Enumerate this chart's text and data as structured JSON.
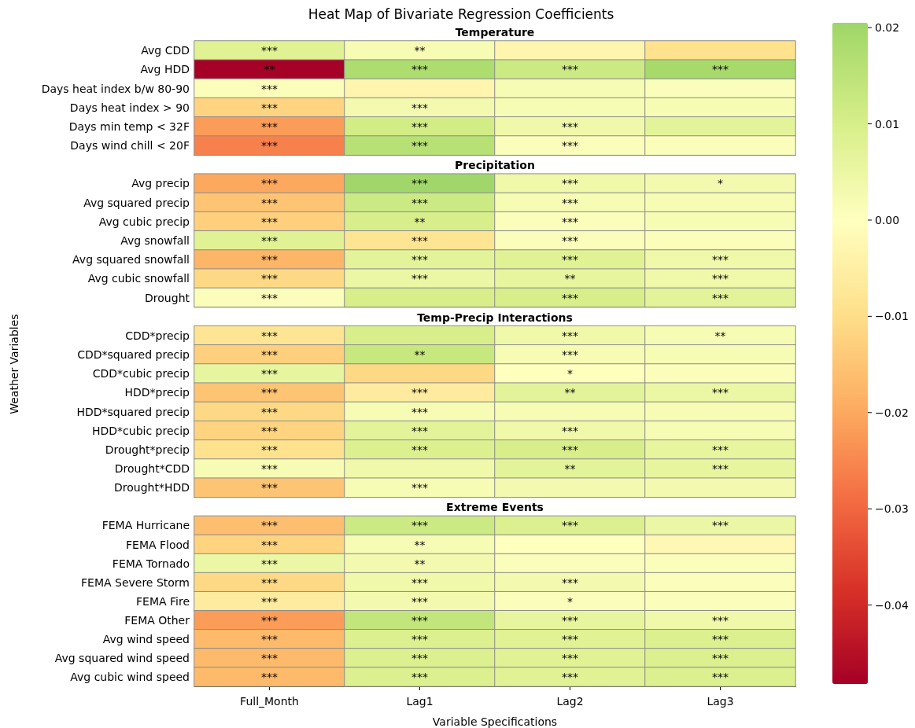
{
  "chart_data": {
    "type": "heatmap",
    "title": "Heat Map of Bivariate Regression Coefficients",
    "xlabel": "Variable Specifications",
    "ylabel": "Weather Variables",
    "annotations": [
      "Temperature",
      "Precipitation",
      "Temp-Precip Interactions",
      "Extreme Events"
    ],
    "categories": [
      "Full_Month",
      "Lag1",
      "Lag2",
      "Lag3"
    ],
    "y_categories": [
      "Avg CDD",
      "Avg HDD",
      "Days heat index b/w 80-90",
      "Days heat index > 90",
      "Days min temp < 32F",
      "Days wind chill < 20F",
      "Avg precip",
      "Avg squared precip",
      "Avg cubic precip",
      "Avg snowfall",
      "Avg squared snowfall",
      "Avg cubic snowfall",
      "Drought",
      "CDD*precip",
      "CDD*squared precip",
      "CDD*cubic precip",
      "HDD*precip",
      "HDD*squared precip",
      "HDD*cubic precip",
      "Drought*precip",
      "Drought*CDD",
      "Drought*HDD",
      "FEMA Hurricane",
      "FEMA Flood",
      "FEMA Tornado",
      "FEMA Severe Storm",
      "FEMA Fire",
      "FEMA Other",
      "Avg wind speed",
      "Avg squared wind speed",
      "Avg cubic wind speed"
    ],
    "cells": [
      [
        0.008,
        0.002,
        -0.003,
        -0.009
      ],
      [
        -0.048,
        0.018,
        0.012,
        0.019
      ],
      [
        0.001,
        -0.003,
        0.002,
        0.001
      ],
      [
        -0.012,
        0.003,
        0.002,
        0.002
      ],
      [
        -0.022,
        0.011,
        0.004,
        0.007
      ],
      [
        -0.026,
        0.016,
        0.001,
        0.001
      ],
      [
        -0.02,
        0.02,
        0.004,
        0.003
      ],
      [
        -0.015,
        0.012,
        0.002,
        0.002
      ],
      [
        -0.013,
        0.01,
        0.001,
        0.002
      ],
      [
        0.008,
        -0.008,
        0.001,
        0.001
      ],
      [
        -0.018,
        0.007,
        0.008,
        0.004
      ],
      [
        -0.011,
        0.005,
        0.006,
        0.004
      ],
      [
        0.001,
        0.01,
        0.01,
        0.007
      ],
      [
        -0.008,
        0.01,
        0.004,
        0.002
      ],
      [
        -0.013,
        0.013,
        0.002,
        0.002
      ],
      [
        0.006,
        -0.011,
        0.0,
        0.001
      ],
      [
        -0.015,
        -0.006,
        0.007,
        0.005
      ],
      [
        -0.011,
        0.002,
        0.002,
        0.002
      ],
      [
        -0.012,
        0.007,
        0.004,
        0.002
      ],
      [
        -0.009,
        0.009,
        0.01,
        0.006
      ],
      [
        0.002,
        0.004,
        0.007,
        0.006
      ],
      [
        -0.015,
        0.002,
        0.003,
        0.003
      ],
      [
        -0.016,
        0.012,
        0.009,
        0.005
      ],
      [
        -0.012,
        0.002,
        0.0,
        -0.002
      ],
      [
        0.005,
        0.003,
        0.001,
        0.001
      ],
      [
        -0.011,
        0.004,
        0.003,
        0.001
      ],
      [
        -0.006,
        0.003,
        0.001,
        0.001
      ],
      [
        -0.022,
        0.014,
        0.006,
        0.004
      ],
      [
        -0.017,
        0.009,
        0.008,
        0.009
      ],
      [
        -0.017,
        0.009,
        0.008,
        0.009
      ],
      [
        -0.017,
        0.009,
        0.008,
        0.009
      ]
    ],
    "cell_labels": [
      [
        "***",
        "**",
        null,
        null
      ],
      [
        "**",
        "***",
        "***",
        "***"
      ],
      [
        "***",
        null,
        null,
        null
      ],
      [
        "***",
        "***",
        null,
        null
      ],
      [
        "***",
        "***",
        "***",
        null
      ],
      [
        "***",
        "***",
        "***",
        null
      ],
      [
        "***",
        "***",
        "***",
        "*"
      ],
      [
        "***",
        "***",
        "***",
        null
      ],
      [
        "***",
        "**",
        "***",
        null
      ],
      [
        "***",
        "***",
        "***",
        null
      ],
      [
        "***",
        "***",
        "***",
        "***"
      ],
      [
        "***",
        "***",
        "**",
        "***"
      ],
      [
        "***",
        null,
        "***",
        "***"
      ],
      [
        "***",
        null,
        "***",
        "**"
      ],
      [
        "***",
        "**",
        "***",
        null
      ],
      [
        "***",
        null,
        "*",
        null
      ],
      [
        "***",
        "***",
        "**",
        "***"
      ],
      [
        "***",
        "***",
        null,
        null
      ],
      [
        "***",
        "***",
        "***",
        null
      ],
      [
        "***",
        "***",
        "***",
        "***"
      ],
      [
        "***",
        null,
        "**",
        "***"
      ],
      [
        "***",
        "***",
        null,
        null
      ],
      [
        "***",
        "***",
        "***",
        "***"
      ],
      [
        "***",
        "**",
        null,
        null
      ],
      [
        "***",
        "**",
        null,
        null
      ],
      [
        "***",
        "***",
        "***",
        null
      ],
      [
        "***",
        "***",
        "*",
        null
      ],
      [
        "***",
        "***",
        "***",
        "***"
      ],
      [
        "***",
        "***",
        "***",
        "***"
      ],
      [
        "***",
        "***",
        "***",
        "***"
      ],
      [
        "***",
        "***",
        "***",
        "***"
      ]
    ],
    "clim": [
      -0.0482,
      0.0205
    ],
    "cticks": [
      {
        "value": -0.04,
        "label": "−0.04"
      },
      {
        "value": -0.03,
        "label": "−0.03"
      },
      {
        "value": -0.02,
        "label": "−0.02"
      },
      {
        "value": -0.01,
        "label": "−0.01"
      },
      {
        "value": 0,
        "label": "0.00"
      },
      {
        "value": 0.01,
        "label": "0.01"
      },
      {
        "value": 0.02,
        "label": "0.02"
      }
    ]
  }
}
